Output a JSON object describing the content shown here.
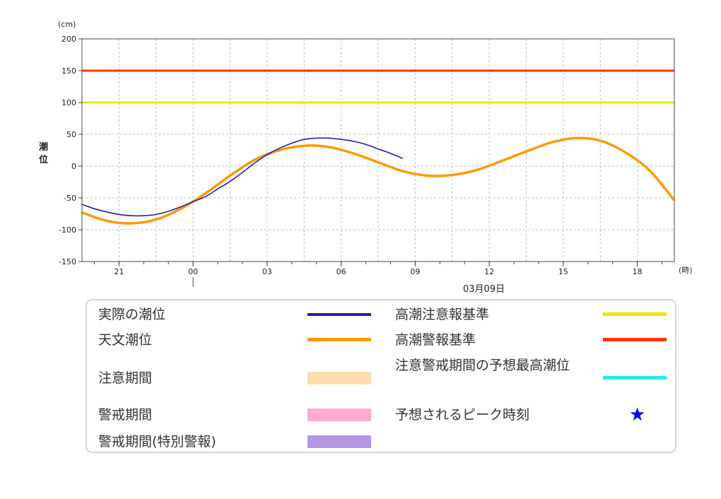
{
  "chart_data": {
    "type": "line",
    "unit_label": "(cm)",
    "ylabel_chars": [
      "潮",
      "位"
    ],
    "ylim": [
      -150,
      200
    ],
    "yticks": [
      200,
      150,
      100,
      50,
      0,
      -50,
      -100,
      -150
    ],
    "xlim_hours": [
      19.5,
      43.5
    ],
    "x_unit_label": "(時)",
    "xticks": [
      {
        "hour": 21,
        "label": "21"
      },
      {
        "hour": 24,
        "label": "00"
      },
      {
        "hour": 27,
        "label": "03"
      },
      {
        "hour": 30,
        "label": "06"
      },
      {
        "hour": 33,
        "label": "09"
      },
      {
        "hour": 36,
        "label": "12"
      },
      {
        "hour": 39,
        "label": "15"
      },
      {
        "hour": 42,
        "label": "18"
      }
    ],
    "date_marker_hour": 24,
    "date_label": "03月09日",
    "grid": true,
    "reference_lines": [
      {
        "name": "高潮注意報基準",
        "value": 100,
        "color": "#f0e400"
      },
      {
        "name": "高潮警報基準",
        "value": 150,
        "color": "#ff3300"
      }
    ],
    "series": [
      {
        "name": "天文潮位",
        "color": "#ff9900",
        "points": [
          [
            19.5,
            -73
          ],
          [
            20.5,
            -86
          ],
          [
            21.5,
            -90
          ],
          [
            22.5,
            -84
          ],
          [
            23.5,
            -67
          ],
          [
            24.5,
            -43
          ],
          [
            25.5,
            -15
          ],
          [
            26.5,
            10
          ],
          [
            27.5,
            25
          ],
          [
            28.5,
            32
          ],
          [
            29.5,
            30
          ],
          [
            30.5,
            20
          ],
          [
            31.5,
            6
          ],
          [
            32.5,
            -8
          ],
          [
            33.5,
            -15
          ],
          [
            34.5,
            -14
          ],
          [
            35.5,
            -6
          ],
          [
            36.5,
            8
          ],
          [
            37.5,
            23
          ],
          [
            38.5,
            37
          ],
          [
            39.5,
            44
          ],
          [
            40.5,
            40
          ],
          [
            41.5,
            22
          ],
          [
            42.5,
            -7
          ],
          [
            43.5,
            -54
          ]
        ]
      },
      {
        "name": "実際の潮位",
        "color": "#2a1bb0",
        "points": [
          [
            19.5,
            -60
          ],
          [
            20,
            -67
          ],
          [
            20.5,
            -72
          ],
          [
            21,
            -76
          ],
          [
            21.5,
            -78
          ],
          [
            22,
            -78
          ],
          [
            22.5,
            -76
          ],
          [
            23,
            -71
          ],
          [
            23.5,
            -64
          ],
          [
            24,
            -56
          ],
          [
            24.5,
            -48
          ],
          [
            25,
            -36
          ],
          [
            25.5,
            -24
          ],
          [
            26,
            -10
          ],
          [
            26.5,
            5
          ],
          [
            27,
            18
          ],
          [
            27.5,
            28
          ],
          [
            28,
            36
          ],
          [
            28.5,
            42
          ],
          [
            29,
            44
          ],
          [
            29.5,
            44
          ],
          [
            30,
            42
          ],
          [
            30.5,
            39
          ],
          [
            31,
            34
          ],
          [
            31.5,
            27
          ],
          [
            32,
            20
          ],
          [
            32.5,
            12
          ]
        ]
      }
    ]
  },
  "legend": {
    "items": [
      {
        "label": "実際の潮位",
        "swatch": "line",
        "color": "#2a1bb0"
      },
      {
        "label": "高潮注意報基準",
        "swatch": "line",
        "color": "#f0e400"
      },
      {
        "label": "天文潮位",
        "swatch": "line",
        "color": "#ff9900"
      },
      {
        "label": "高潮警報基準",
        "swatch": "line",
        "color": "#ff3300"
      },
      {
        "label": "注意期間",
        "swatch": "box",
        "color": "#ffdcb0"
      },
      {
        "label": "注意警戒期間の予想最高潮位",
        "swatch": "line",
        "color": "#22ecec"
      },
      {
        "label": "警戒期間",
        "swatch": "box",
        "color": "#ffaad0"
      },
      {
        "label": "予想されるピーク時刻",
        "swatch": "star",
        "color": "#0000ee",
        "symbol": "★"
      },
      {
        "label": "警戒期間(特別警報)",
        "swatch": "box",
        "color": "#b496e6"
      }
    ]
  }
}
